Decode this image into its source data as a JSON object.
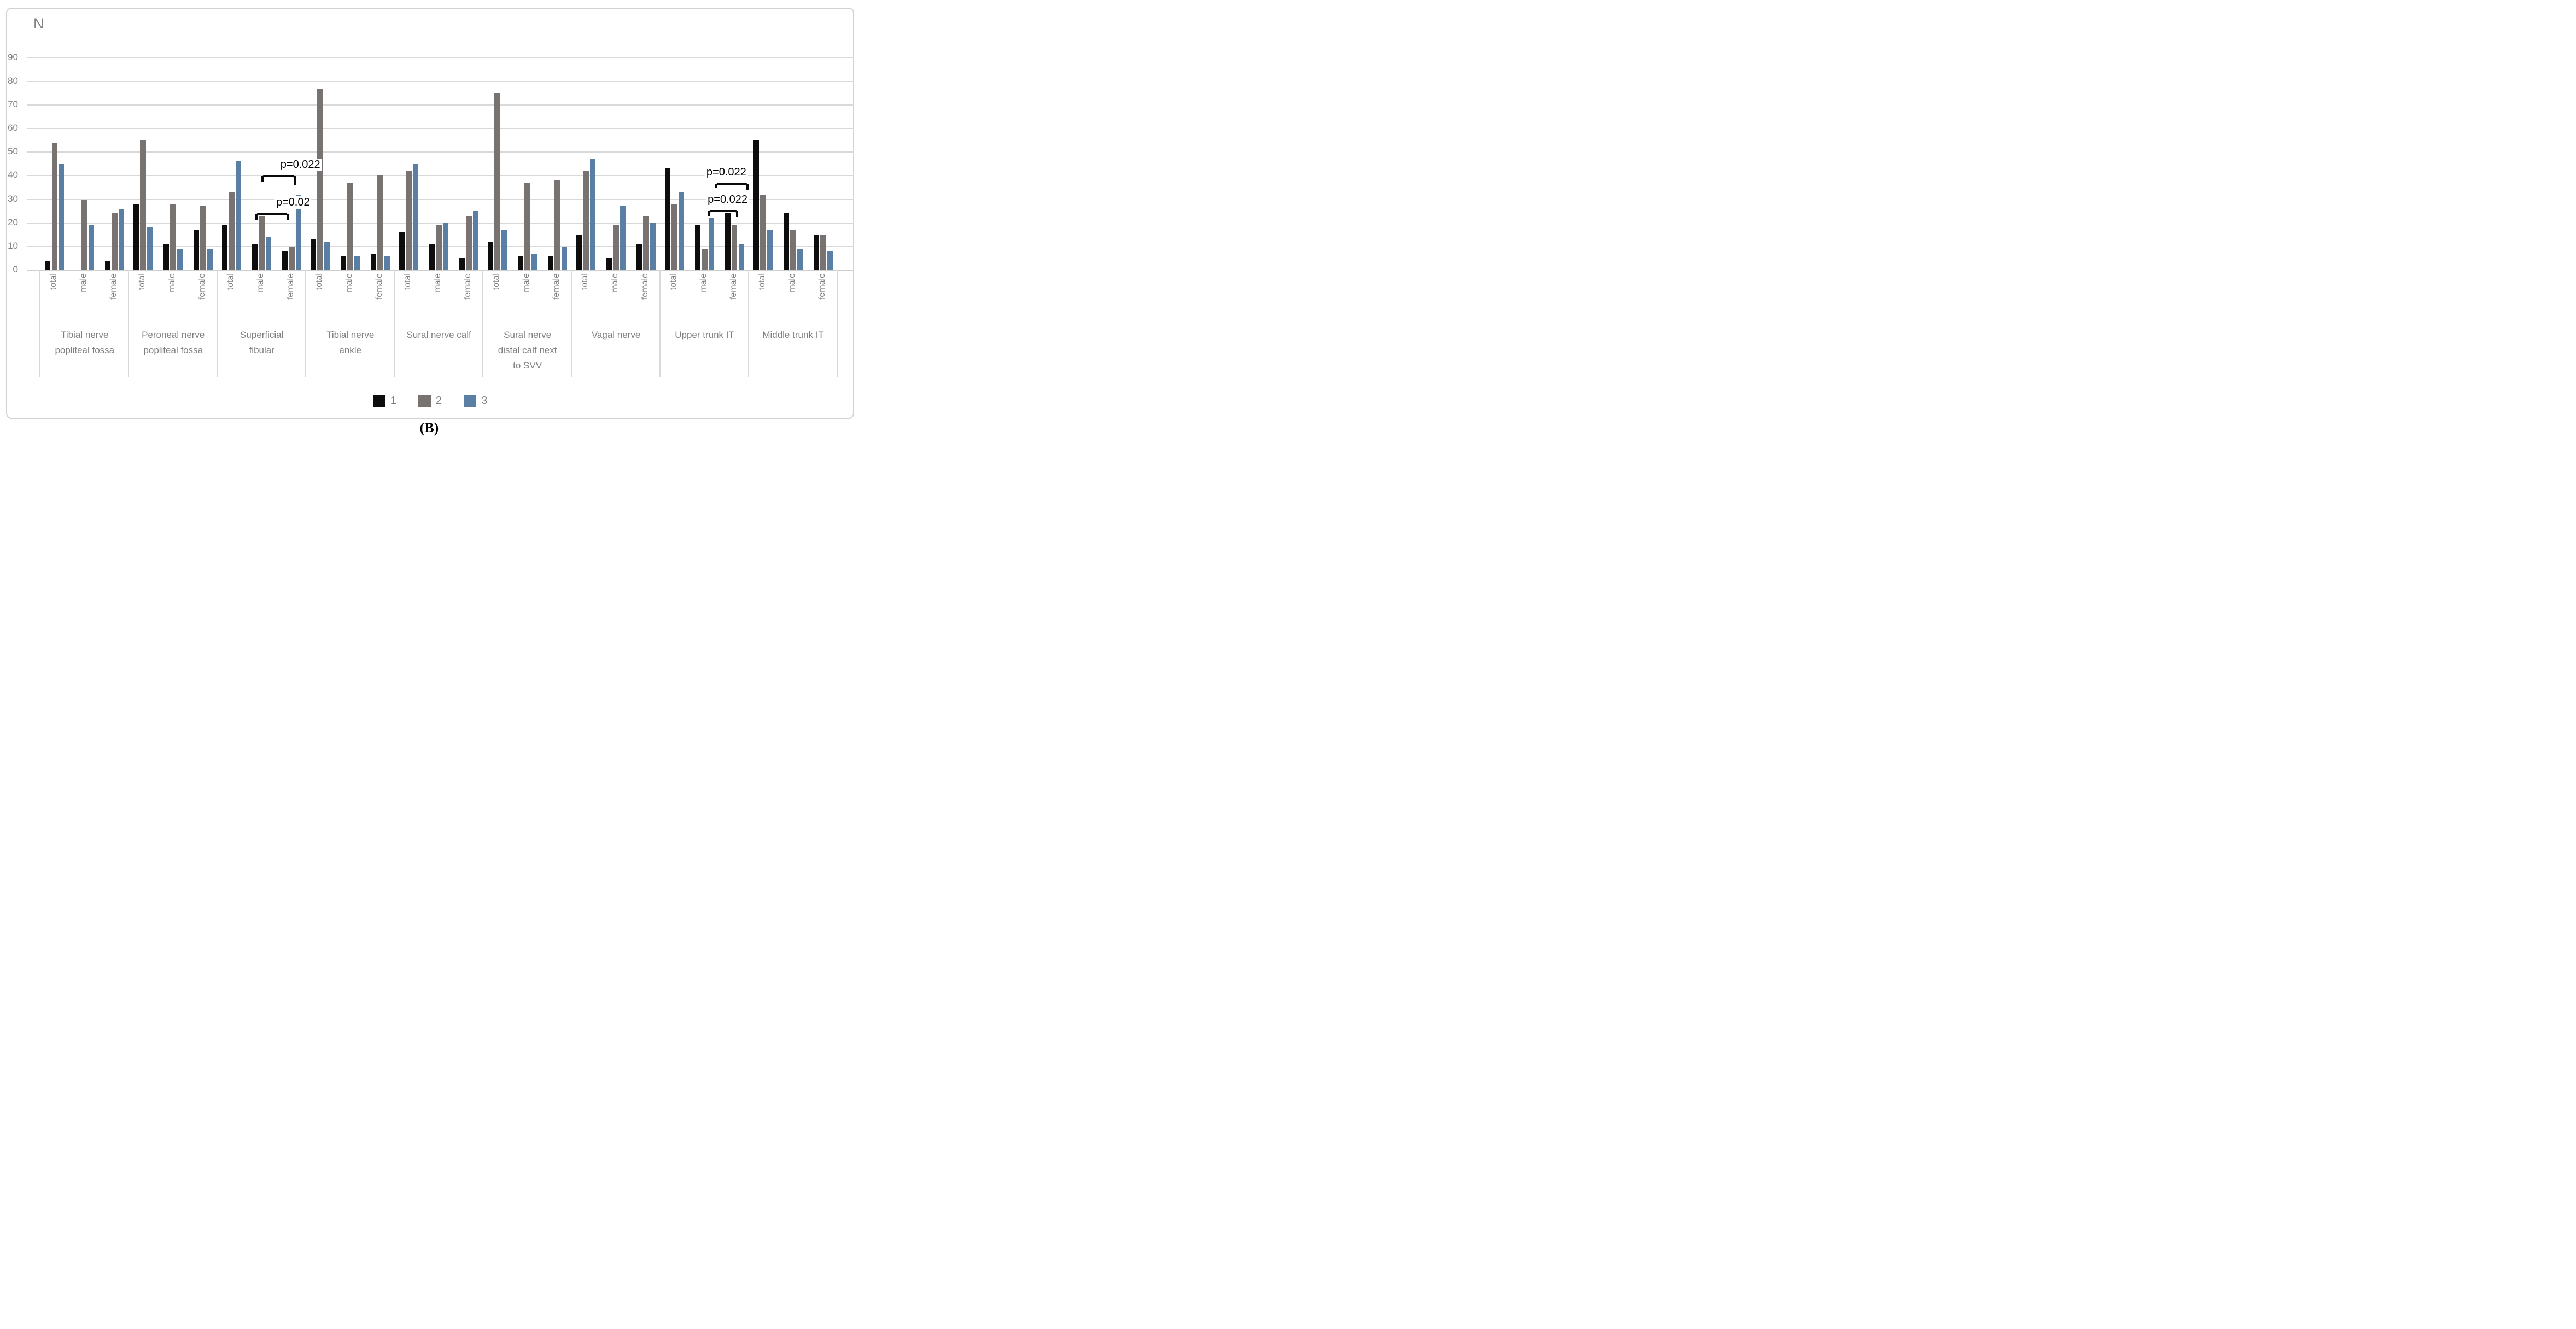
{
  "page": {
    "caption": "(B)"
  },
  "colors": {
    "series1": "#0d0d0d",
    "series2": "#787270",
    "series3": "#5a7fa4",
    "gridline": "#d9d9d9",
    "axis_text": "#7f7f7f",
    "annotation": "#000000"
  },
  "legend": {
    "items": [
      {
        "label": "1",
        "color": "#0d0d0d"
      },
      {
        "label": "2",
        "color": "#787270"
      },
      {
        "label": "3",
        "color": "#5a7fa4"
      }
    ]
  },
  "chart_data": {
    "type": "bar",
    "title": "",
    "xlabel": "",
    "ylabel": "N",
    "ylim": [
      0,
      90
    ],
    "yticks": [
      90,
      80,
      70,
      60,
      50,
      40,
      30,
      20,
      10,
      0
    ],
    "grid": true,
    "legend_position": "bottom-center",
    "series": [
      {
        "name": "1",
        "color": "#0d0d0d"
      },
      {
        "name": "2",
        "color": "#787270"
      },
      {
        "name": "3",
        "color": "#5a7fa4"
      }
    ],
    "subgroup_labels": [
      "total",
      "male",
      "female"
    ],
    "groups": [
      {
        "label": "Tibial nerve popliteal fossa",
        "label_lines": [
          "Tibial nerve",
          "popliteal fossa"
        ],
        "subgroups": [
          {
            "label": "total",
            "values": [
              4,
              54,
              45
            ]
          },
          {
            "label": "male",
            "values": [
              0,
              30,
              19
            ]
          },
          {
            "label": "female",
            "values": [
              4,
              24,
              26
            ]
          }
        ]
      },
      {
        "label": "Peroneal nerve popliteal fossa",
        "label_lines": [
          "Peroneal nerve",
          "popliteal fossa"
        ],
        "subgroups": [
          {
            "label": "total",
            "values": [
              28,
              55,
              18
            ]
          },
          {
            "label": "male",
            "values": [
              11,
              28,
              9
            ]
          },
          {
            "label": "female",
            "values": [
              17,
              27,
              9
            ]
          }
        ]
      },
      {
        "label": "Superficial fibular",
        "label_lines": [
          "Superficial",
          "fibular"
        ],
        "subgroups": [
          {
            "label": "total",
            "values": [
              19,
              33,
              46
            ]
          },
          {
            "label": "male",
            "values": [
              11,
              23,
              14
            ]
          },
          {
            "label": "female",
            "values": [
              8,
              10,
              32
            ]
          }
        ]
      },
      {
        "label": "Tibial nerve ankle",
        "label_lines": [
          "Tibial nerve",
          "ankle"
        ],
        "subgroups": [
          {
            "label": "total",
            "values": [
              13,
              77,
              12
            ]
          },
          {
            "label": "male",
            "values": [
              6,
              37,
              6
            ]
          },
          {
            "label": "female",
            "values": [
              7,
              40,
              6
            ]
          }
        ]
      },
      {
        "label": "Sural nerve calf",
        "label_lines": [
          "Sural nerve calf"
        ],
        "subgroups": [
          {
            "label": "total",
            "values": [
              16,
              42,
              45
            ]
          },
          {
            "label": "male",
            "values": [
              11,
              19,
              20
            ]
          },
          {
            "label": "female",
            "values": [
              5,
              23,
              25
            ]
          }
        ]
      },
      {
        "label": "Sural nerve distal calf next to SVV",
        "label_lines": [
          "Sural nerve",
          "distal calf next",
          "to SVV"
        ],
        "subgroups": [
          {
            "label": "total",
            "values": [
              12,
              75,
              17
            ]
          },
          {
            "label": "male",
            "values": [
              6,
              37,
              7
            ]
          },
          {
            "label": "female",
            "values": [
              6,
              38,
              10
            ]
          }
        ]
      },
      {
        "label": "Vagal nerve",
        "label_lines": [
          "Vagal nerve"
        ],
        "subgroups": [
          {
            "label": "total",
            "values": [
              15,
              42,
              47
            ]
          },
          {
            "label": "male",
            "values": [
              5,
              19,
              27
            ]
          },
          {
            "label": "female",
            "values": [
              11,
              23,
              20
            ]
          }
        ]
      },
      {
        "label": "Upper trunk IT",
        "label_lines": [
          "Upper trunk IT"
        ],
        "subgroups": [
          {
            "label": "total",
            "values": [
              43,
              28,
              33
            ]
          },
          {
            "label": "male",
            "values": [
              19,
              9,
              22
            ]
          },
          {
            "label": "female",
            "values": [
              24,
              19,
              11
            ]
          }
        ]
      },
      {
        "label": "Middle trunk IT",
        "label_lines": [
          "Middle trunk IT"
        ],
        "subgroups": [
          {
            "label": "total",
            "values": [
              55,
              32,
              17
            ]
          },
          {
            "label": "male",
            "values": [
              24,
              17,
              9
            ]
          },
          {
            "label": "female",
            "values": [
              15,
              15,
              8
            ]
          }
        ]
      }
    ],
    "annotations": [
      {
        "text": "p=0.022",
        "group": 2,
        "from": {
          "subgroup": 1,
          "series": 1
        },
        "to": {
          "subgroup": 2,
          "series": 2
        },
        "level": 40.3,
        "dx1": 0,
        "dx2": -6,
        "tick1": 10,
        "tick2": 16,
        "text_dx": 40
      },
      {
        "text": "p=0.02",
        "group": 2,
        "from": {
          "subgroup": 1,
          "series": 0
        },
        "to": {
          "subgroup": 2,
          "series": 1
        },
        "level": 24.4,
        "dx1": 2,
        "dx2": -6,
        "tick1": 11,
        "tick2": 11,
        "text_dx": 38
      },
      {
        "text": "p=0.022",
        "group": 7,
        "from": {
          "subgroup": 1,
          "series": 2
        },
        "to": {
          "subgroup": 2,
          "series": 2
        },
        "level": 37.1,
        "dx1": 8,
        "dx2": 12,
        "tick1": 8,
        "tick2": 12,
        "text_dx": -10
      },
      {
        "text": "p=0.022",
        "group": 7,
        "from": {
          "subgroup": 1,
          "series": 2
        },
        "to": {
          "subgroup": 2,
          "series": 1
        },
        "level": 25.5,
        "dx1": -5,
        "dx2": 6,
        "tick1": 9,
        "tick2": 11,
        "text_dx": 8
      }
    ]
  }
}
